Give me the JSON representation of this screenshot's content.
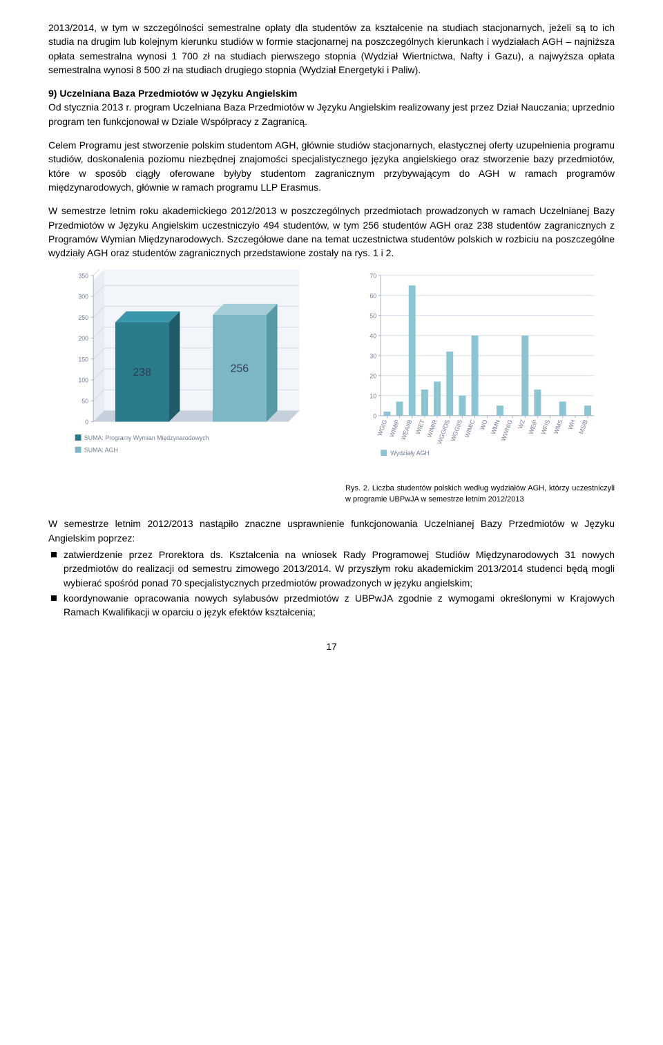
{
  "para1": "2013/2014, w tym w szczególności semestralne opłaty dla studentów za kształcenie na studiach stacjonarnych, jeżeli są to ich studia na drugim lub kolejnym kierunku studiów w formie stacjonarnej na poszczególnych kierunkach i wydziałach AGH – najniższa opłata semestralna wynosi 1 700 zł na studiach pierwszego stopnia (Wydział Wiertnictwa, Nafty i Gazu), a najwyższa opłata semestralna wynosi 8 500 zł na studiach drugiego stopnia (Wydział Energetyki i Paliw).",
  "heading9": "9)  Uczelniana Baza Przedmiotów w Języku Angielskim",
  "para2": "Od stycznia 2013 r. program Uczelniana Baza Przedmiotów w Języku Angielskim realizowany jest przez Dział Nauczania; uprzednio program ten funkcjonował w Dziale Współpracy z Zagranicą.",
  "para3": "Celem Programu jest stworzenie polskim studentom AGH, głównie studiów stacjonarnych, elastycznej oferty uzupełnienia programu studiów, doskonalenia poziomu niezbędnej znajomości specjalistycznego języka angielskiego oraz stworzenie bazy przedmiotów, które w sposób ciągły oferowane byłyby studentom zagranicznym przybywającym do AGH w ramach programów międzynarodowych, głównie w ramach programu LLP Erasmus.",
  "para4": "W semestrze letnim roku akademickiego 2012/2013 w poszczególnych przedmiotach prowadzonych w ramach Uczelnianej Bazy Przedmiotów w Języku Angielskim uczestniczyło 494 studentów, w tym 256 studentów AGH oraz 238 studentów zagranicznych z Programów Wymian Międzynarodowych. Szczegółowe dane na temat uczestnictwa studentów polskich w rozbiciu na poszczególne wydziały AGH oraz studentów zagranicznych przedstawione zostały na rys. 1 i 2.",
  "chart1": {
    "type": "bar-3d",
    "categories": [
      "SUMA: Programy Wymian Międzynarodowych",
      "SUMA: AGH"
    ],
    "values": [
      238,
      256
    ],
    "bar_colors": [
      "#2a7b8c",
      "#7db6c4"
    ],
    "bar_top_colors": [
      "#3a97aa",
      "#a3cdd7"
    ],
    "bar_side_colors": [
      "#1f5c69",
      "#5a99a8"
    ],
    "ylim": [
      0,
      350
    ],
    "ytick_step": 50,
    "yticks": [
      0,
      50,
      100,
      150,
      200,
      250,
      300,
      350
    ],
    "background_color": "#ffffff",
    "floor_color": "#c6d0dc",
    "wall_color": "#e8edf3",
    "grid_color": "#d0d7e2",
    "axis_text_color": "#6e7d93",
    "value_label_color": "#2d3d55",
    "bar_width": 0.55,
    "label_fontsize": 10,
    "value_fontsize": 18
  },
  "chart2": {
    "type": "bar",
    "title_legend": "Wydziały AGH",
    "categories": [
      "WGIG",
      "WIMIP",
      "WEAIIB",
      "WIET",
      "WIMIR",
      "WGGIOS",
      "WGGIIS",
      "WIMIC",
      "WO",
      "WMN",
      "WWNIG",
      "WZ",
      "WEiP",
      "WFIS",
      "WMS",
      "WH",
      "MSIB"
    ],
    "values": [
      2,
      7,
      65,
      13,
      17,
      32,
      10,
      40,
      0,
      5,
      0,
      40,
      13,
      0,
      7,
      0,
      5
    ],
    "bar_color": "#8cc5d1",
    "ylim": [
      0,
      70
    ],
    "ytick_step": 10,
    "yticks": [
      0,
      10,
      20,
      30,
      40,
      50,
      60,
      70
    ],
    "background_color": "#ffffff",
    "grid_color": "#d0d7e2",
    "axis_text_color": "#6e7d93",
    "label_fontsize": 9,
    "bar_width": 0.55
  },
  "caption2": "Rys. 2. Liczba studentów polskich według wydziałów AGH, którzy uczestniczyli w programie UBPwJA w semestrze letnim 2012/2013",
  "para5": "W semestrze letnim 2012/2013 nastąpiło znaczne usprawnienie funkcjonowania Uczelnianej Bazy Przedmiotów w Języku Angielskim poprzez:",
  "bullets": [
    "zatwierdzenie przez Prorektora ds. Kształcenia na wniosek Rady Programowej Studiów Międzynarodowych 31 nowych przedmiotów do realizacji od semestru zimowego 2013/2014. W przyszłym roku akademickim 2013/2014 studenci będą mogli wybierać spośród ponad 70 specjalistycznych przedmiotów prowadzonych w języku angielskim;",
    "koordynowanie opracowania nowych sylabusów przedmiotów z UBPwJA zgodnie z wymogami określonymi w Krajowych Ramach Kwalifikacji w oparciu o język efektów kształcenia;"
  ],
  "pageNumber": "17"
}
